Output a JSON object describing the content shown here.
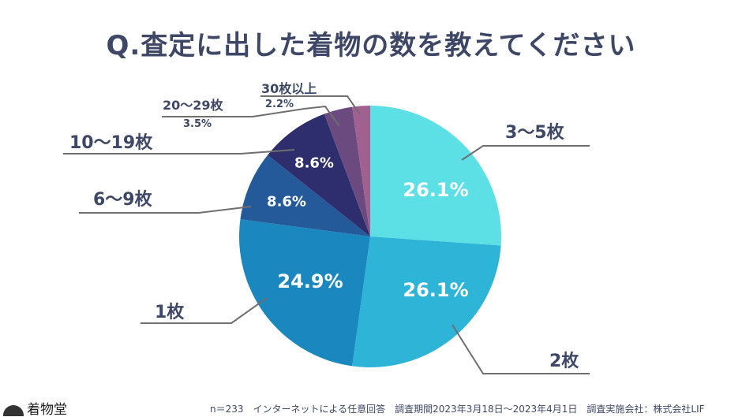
{
  "title": "Q.査定に出した着物の数を教えてください",
  "chart_data": {
    "type": "pie",
    "title": "Q.査定に出した着物の数を教えてください",
    "start": "top",
    "direction": "clockwise",
    "slices": [
      {
        "label": "3〜5枚",
        "value": 26.1,
        "display": "26.1%",
        "color": "#5ce0e6"
      },
      {
        "label": "2枚",
        "value": 26.1,
        "display": "26.1%",
        "color": "#2db4d6"
      },
      {
        "label": "1枚",
        "value": 24.9,
        "display": "24.9%",
        "color": "#1a88bf"
      },
      {
        "label": "6〜9枚",
        "value": 8.6,
        "display": "8.6%",
        "color": "#245a9a"
      },
      {
        "label": "10〜19枚",
        "value": 8.6,
        "display": "8.6%",
        "color": "#2e2e6e"
      },
      {
        "label": "20〜29枚",
        "value": 3.5,
        "display": "3.5%",
        "color": "#6b4a80"
      },
      {
        "label": "30枚以上",
        "value": 2.2,
        "display": "2.2%",
        "color": "#a06090"
      }
    ]
  },
  "footer": "n＝233　インターネットによる任意回答　調査期間2023年3月18日〜2023年4月1日　調査実施会社：株式会社LIF",
  "logo": "着物堂"
}
